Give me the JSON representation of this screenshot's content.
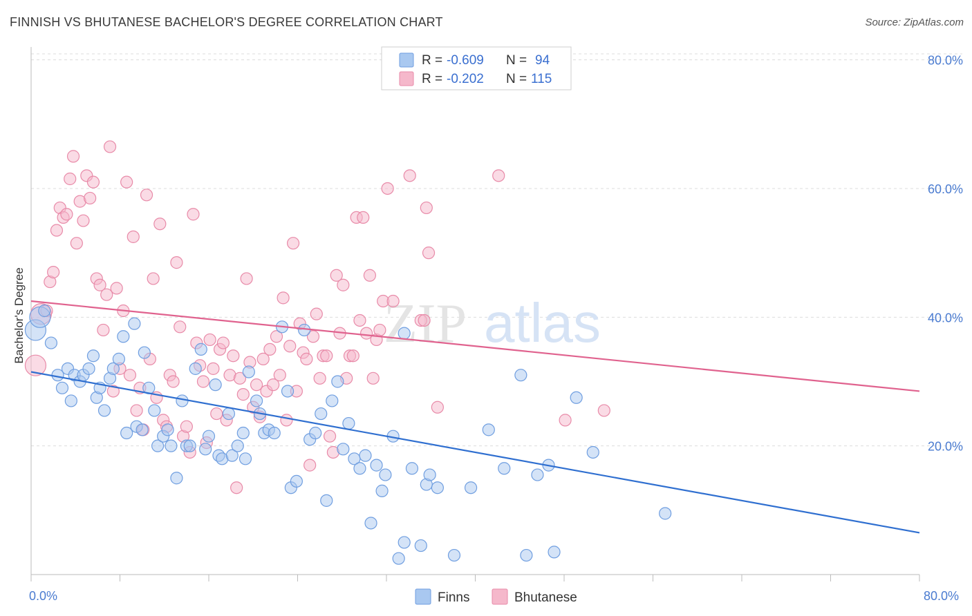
{
  "title": "FINNISH VS BHUTANESE BACHELOR'S DEGREE CORRELATION CHART",
  "source": "Source: ZipAtlas.com",
  "watermark": {
    "part1": "ZIP",
    "part2": "atlas"
  },
  "colors": {
    "finns_fill": "#a9c8f0",
    "finns_stroke": "#6f9ee0",
    "finns_line": "#2f6fd0",
    "bhutanese_fill": "#f5b8cb",
    "bhutanese_stroke": "#e88aa8",
    "bhutanese_line": "#e0628e",
    "tick_label": "#4a7bd0",
    "grid": "#dcdcdc"
  },
  "legend": {
    "rows": [
      {
        "r_label": "R =",
        "r_value": "-0.609",
        "n_label": "N =",
        "n_value": "94"
      },
      {
        "r_label": "R =",
        "r_value": "-0.202",
        "n_label": "N =",
        "n_value": "115"
      }
    ]
  },
  "bottom_legend": {
    "finns": "Finns",
    "bhutanese": "Bhutanese"
  },
  "chart_data": {
    "type": "scatter",
    "title": "FINNISH VS BHUTANESE BACHELOR'S DEGREE CORRELATION CHART",
    "xlabel": "",
    "ylabel": "Bachelor's Degree",
    "xlim": [
      0,
      80
    ],
    "ylim": [
      0,
      82
    ],
    "x_tick_labels": [
      "0.0%",
      "80.0%"
    ],
    "y_tick_labels": [
      "20.0%",
      "40.0%",
      "60.0%",
      "80.0%"
    ],
    "y_ticks": [
      20,
      40,
      60,
      80
    ],
    "grid": true,
    "legend_position": "top-center",
    "series": [
      {
        "name": "Finns",
        "R": -0.609,
        "N": 94,
        "trend": {
          "x": [
            0,
            80
          ],
          "y": [
            31.5,
            6.5
          ]
        },
        "points": [
          [
            0.4,
            38
          ],
          [
            0.8,
            40
          ],
          [
            1.2,
            41
          ],
          [
            1.8,
            36
          ],
          [
            2.4,
            31
          ],
          [
            2.8,
            29
          ],
          [
            3.3,
            32
          ],
          [
            3.6,
            27
          ],
          [
            3.9,
            31
          ],
          [
            4.4,
            30
          ],
          [
            4.7,
            31
          ],
          [
            5.2,
            32
          ],
          [
            5.6,
            34
          ],
          [
            5.9,
            27.5
          ],
          [
            6.2,
            29
          ],
          [
            6.6,
            25.5
          ],
          [
            7.1,
            30.5
          ],
          [
            7.4,
            32
          ],
          [
            7.9,
            33.5
          ],
          [
            8.3,
            37
          ],
          [
            8.6,
            22
          ],
          [
            9.3,
            39
          ],
          [
            9.5,
            23
          ],
          [
            10,
            22.5
          ],
          [
            10.2,
            34.5
          ],
          [
            10.6,
            29
          ],
          [
            11.1,
            25.5
          ],
          [
            11.4,
            20
          ],
          [
            11.9,
            21.5
          ],
          [
            12.3,
            22.5
          ],
          [
            12.6,
            20
          ],
          [
            13.1,
            15
          ],
          [
            13.6,
            27
          ],
          [
            14,
            20
          ],
          [
            14.3,
            20
          ],
          [
            14.8,
            32
          ],
          [
            15.3,
            35
          ],
          [
            15.7,
            19.5
          ],
          [
            16,
            21.5
          ],
          [
            16.6,
            29.5
          ],
          [
            16.9,
            18.5
          ],
          [
            17.2,
            18
          ],
          [
            17.8,
            25
          ],
          [
            18.1,
            18.5
          ],
          [
            18.6,
            20
          ],
          [
            19.1,
            22
          ],
          [
            19.3,
            18
          ],
          [
            19.6,
            31.5
          ],
          [
            20.3,
            27
          ],
          [
            20.6,
            25
          ],
          [
            21,
            22
          ],
          [
            21.4,
            22.5
          ],
          [
            21.9,
            22
          ],
          [
            22.6,
            38.5
          ],
          [
            23.1,
            28.5
          ],
          [
            23.4,
            13.5
          ],
          [
            23.9,
            14.5
          ],
          [
            24.6,
            38
          ],
          [
            25.1,
            21
          ],
          [
            25.6,
            22
          ],
          [
            26.1,
            25
          ],
          [
            26.6,
            11.5
          ],
          [
            27.1,
            27
          ],
          [
            27.6,
            30
          ],
          [
            28.1,
            19.5
          ],
          [
            28.6,
            23.5
          ],
          [
            29.1,
            18
          ],
          [
            29.6,
            16.5
          ],
          [
            30.1,
            18.5
          ],
          [
            30.6,
            8
          ],
          [
            31.1,
            17
          ],
          [
            31.6,
            13
          ],
          [
            31.9,
            15.5
          ],
          [
            32.6,
            21.5
          ],
          [
            33.1,
            2.5
          ],
          [
            33.6,
            37.5
          ],
          [
            34.3,
            16.5
          ],
          [
            35.1,
            4.5
          ],
          [
            35.6,
            14
          ],
          [
            35.9,
            15.5
          ],
          [
            36.6,
            13.5
          ],
          [
            38.1,
            3
          ],
          [
            39.6,
            13.5
          ],
          [
            41.2,
            22.5
          ],
          [
            42.6,
            16.5
          ],
          [
            44.1,
            31
          ],
          [
            44.6,
            3
          ],
          [
            45.6,
            15.5
          ],
          [
            46.6,
            17
          ],
          [
            47.1,
            3.5
          ],
          [
            49.1,
            27.5
          ],
          [
            50.6,
            19
          ],
          [
            57.1,
            9.5
          ],
          [
            33.6,
            5
          ]
        ]
      },
      {
        "name": "Bhutanese",
        "R": -0.202,
        "N": 115,
        "trend": {
          "x": [
            0,
            80
          ],
          "y": [
            42.5,
            28.5
          ]
        },
        "points": [
          [
            0.4,
            32.5
          ],
          [
            0.9,
            40.5
          ],
          [
            1.4,
            41
          ],
          [
            1.7,
            45.5
          ],
          [
            2,
            47
          ],
          [
            2.3,
            53.5
          ],
          [
            2.6,
            57
          ],
          [
            2.9,
            55.5
          ],
          [
            3.2,
            56
          ],
          [
            3.5,
            61.5
          ],
          [
            3.8,
            65
          ],
          [
            4.1,
            51.5
          ],
          [
            4.4,
            58
          ],
          [
            4.7,
            55
          ],
          [
            5,
            62
          ],
          [
            5.3,
            58.5
          ],
          [
            5.6,
            61
          ],
          [
            5.9,
            46
          ],
          [
            6.2,
            45
          ],
          [
            6.5,
            38
          ],
          [
            6.8,
            43.5
          ],
          [
            7.1,
            66.5
          ],
          [
            7.4,
            28.5
          ],
          [
            7.7,
            44.5
          ],
          [
            8,
            32
          ],
          [
            8.3,
            41
          ],
          [
            8.6,
            61
          ],
          [
            8.9,
            31
          ],
          [
            9.2,
            52.5
          ],
          [
            9.5,
            25.5
          ],
          [
            9.8,
            29
          ],
          [
            10.1,
            22.5
          ],
          [
            10.4,
            59
          ],
          [
            10.7,
            33.5
          ],
          [
            11,
            46
          ],
          [
            11.3,
            27.5
          ],
          [
            11.6,
            54.5
          ],
          [
            11.9,
            24
          ],
          [
            12.2,
            23
          ],
          [
            12.5,
            31
          ],
          [
            12.8,
            30
          ],
          [
            13.1,
            48.5
          ],
          [
            13.4,
            38.5
          ],
          [
            13.7,
            21.5
          ],
          [
            14,
            23
          ],
          [
            14.3,
            19
          ],
          [
            14.6,
            56
          ],
          [
            14.9,
            36
          ],
          [
            15.2,
            32.5
          ],
          [
            15.5,
            30
          ],
          [
            15.8,
            20.5
          ],
          [
            16.1,
            36.5
          ],
          [
            16.4,
            32
          ],
          [
            16.7,
            25
          ],
          [
            17,
            35
          ],
          [
            17.3,
            36
          ],
          [
            17.6,
            24
          ],
          [
            17.9,
            31
          ],
          [
            18.2,
            34
          ],
          [
            18.5,
            13.5
          ],
          [
            18.8,
            30.5
          ],
          [
            19.1,
            28
          ],
          [
            19.4,
            46
          ],
          [
            19.7,
            33
          ],
          [
            20,
            26
          ],
          [
            20.3,
            29.5
          ],
          [
            20.6,
            24.5
          ],
          [
            20.9,
            33.5
          ],
          [
            21.2,
            28.5
          ],
          [
            21.5,
            35
          ],
          [
            21.8,
            29.5
          ],
          [
            22.1,
            37
          ],
          [
            22.4,
            31
          ],
          [
            22.7,
            43
          ],
          [
            23,
            24
          ],
          [
            23.3,
            35.5
          ],
          [
            23.6,
            51.5
          ],
          [
            23.9,
            28.5
          ],
          [
            24.2,
            39
          ],
          [
            24.5,
            34.5
          ],
          [
            24.8,
            33.5
          ],
          [
            25.1,
            17
          ],
          [
            25.4,
            37
          ],
          [
            25.7,
            40.5
          ],
          [
            26,
            30.5
          ],
          [
            26.3,
            34
          ],
          [
            26.6,
            34
          ],
          [
            26.9,
            21.5
          ],
          [
            27.2,
            19
          ],
          [
            27.5,
            46.5
          ],
          [
            27.8,
            37.5
          ],
          [
            28.1,
            45
          ],
          [
            28.4,
            30.5
          ],
          [
            28.7,
            34
          ],
          [
            29,
            34
          ],
          [
            29.3,
            55.5
          ],
          [
            29.6,
            39.5
          ],
          [
            29.9,
            55.5
          ],
          [
            30.2,
            37.5
          ],
          [
            30.5,
            46.5
          ],
          [
            30.8,
            30.5
          ],
          [
            31.1,
            36.5
          ],
          [
            31.4,
            38
          ],
          [
            31.7,
            42.5
          ],
          [
            32.1,
            60
          ],
          [
            32.6,
            42.5
          ],
          [
            34.1,
            62
          ],
          [
            35.1,
            39.5
          ],
          [
            35.4,
            39.5
          ],
          [
            35.8,
            50
          ],
          [
            36.6,
            26
          ],
          [
            42.1,
            62
          ],
          [
            48.1,
            24
          ],
          [
            51.6,
            25.5
          ],
          [
            35.6,
            57
          ]
        ]
      }
    ]
  }
}
